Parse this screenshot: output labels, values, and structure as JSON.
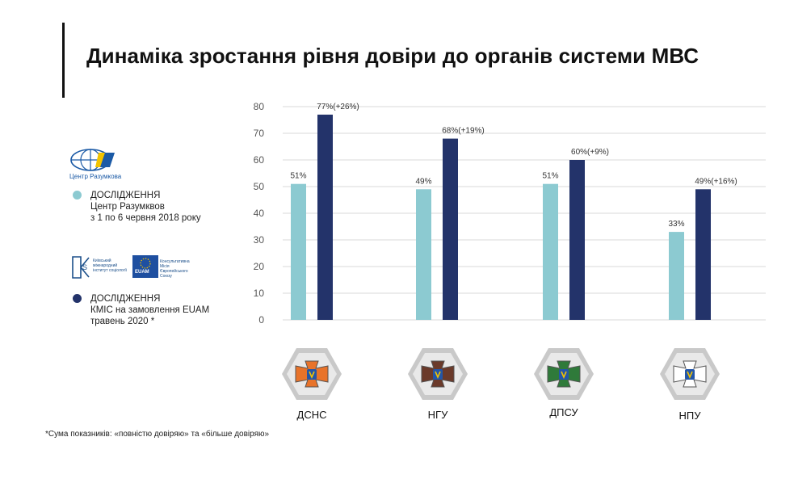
{
  "title": "Динаміка зростання рівня довіри до органів системи МВС",
  "legend": {
    "razumkov_logo_text": "Центр Разумкова",
    "kmis_logo_text": "Київський міжнародний інститут соціології",
    "euam_logo_text": "EUAM",
    "euam_logo_subtext": "Консультативна Місія Європейського Союзу",
    "item1_lines": [
      "ДОСЛІДЖЕННЯ",
      "Центр Разумквов",
      "з 1 по 6 червня 2018 року"
    ],
    "item2_lines": [
      "ДОСЛІДЖЕННЯ",
      "КМІС на замовлення EUAM",
      "травень 2020 *"
    ]
  },
  "footnote": "*Сума показників: «повністю довіряю» та «більше довіряю»",
  "colors": {
    "series_2018": "#8ccad1",
    "series_2020": "#23336a",
    "grid": "#d9d9d9",
    "badge_hex": "#c9c9c9"
  },
  "agencies": [
    {
      "label": "ДСНС",
      "icon": "dsns-emblem-icon",
      "cross": "#e8732a"
    },
    {
      "label": "НГУ",
      "icon": "ngu-emblem-icon",
      "cross": "#6b3a2a"
    },
    {
      "label": "ДПСУ",
      "icon": "dpsu-emblem-icon",
      "cross": "#2f7a3a"
    },
    {
      "label": "НПУ",
      "icon": "npu-emblem-icon",
      "cross": "#ffffff"
    }
  ],
  "chart_data": {
    "type": "bar",
    "categories": [
      "ДСНС",
      "НГУ",
      "ДПСУ",
      "НПУ"
    ],
    "series": [
      {
        "values": [
          51,
          49,
          51,
          33
        ],
        "labels": [
          "51%",
          "49%",
          "51%",
          "33%"
        ]
      },
      {
        "values": [
          77,
          68,
          60,
          49
        ],
        "labels": [
          "77%(+26%)",
          "68%(+19%)",
          "60%(+9%)",
          "49%(+16%)"
        ]
      }
    ],
    "ylim": [
      0,
      80
    ],
    "yticks": [
      "0",
      "10",
      "20",
      "30",
      "40",
      "50",
      "60",
      "70",
      "80"
    ],
    "grid": true
  }
}
